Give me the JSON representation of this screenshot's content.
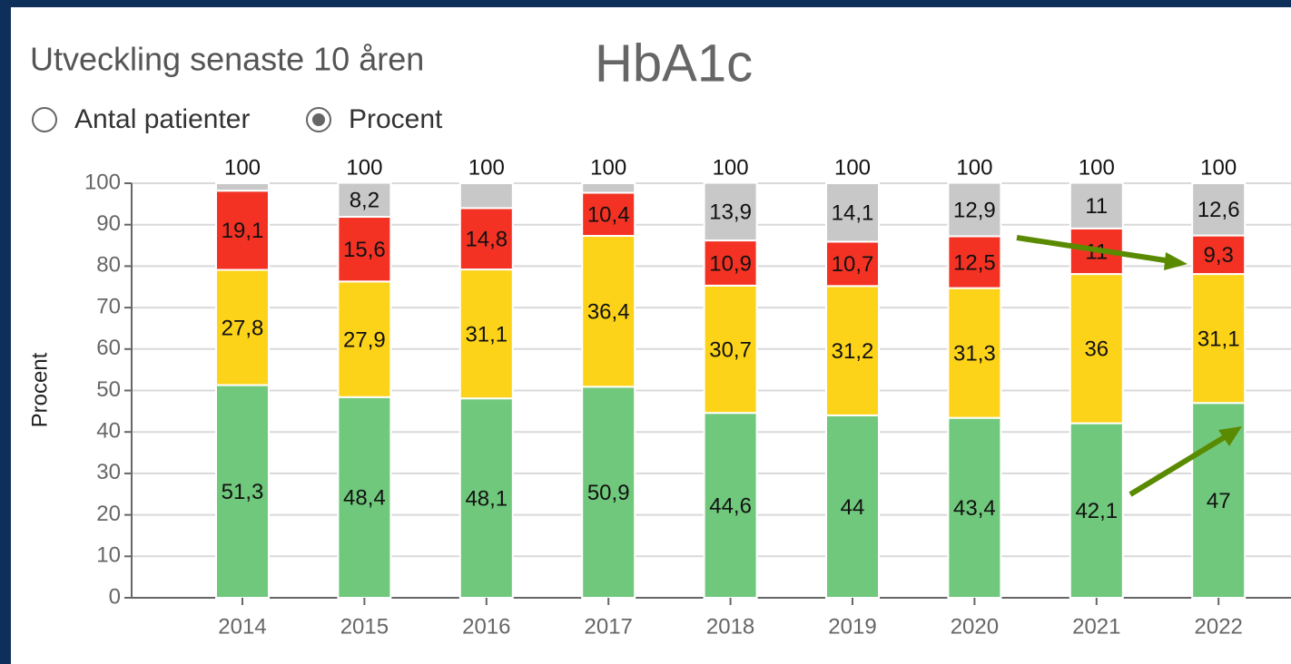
{
  "panel": {
    "heading": "Utveckling senaste 10 åren",
    "options": [
      {
        "label": "Antal patienter",
        "selected": false
      },
      {
        "label": "Procent",
        "selected": true
      }
    ]
  },
  "chart_data": {
    "type": "stacked_bar",
    "title": "HbA1c",
    "ylabel": "Procent",
    "categories": [
      "2014",
      "2015",
      "2016",
      "2017",
      "2018",
      "2019",
      "2020",
      "2021",
      "2022"
    ],
    "totals": [
      100,
      100,
      100,
      100,
      100,
      100,
      100,
      100,
      100
    ],
    "series": [
      {
        "color": "#70c87c",
        "values": [
          51.3,
          48.4,
          48.1,
          50.9,
          44.6,
          44,
          43.4,
          42.1,
          47
        ],
        "value_labels": [
          "51,3",
          "48,4",
          "48,1",
          "50,9",
          "44,6",
          "44",
          "43,4",
          "42,1",
          "47"
        ]
      },
      {
        "color": "#fdd31a",
        "values": [
          27.8,
          27.9,
          31.1,
          36.4,
          30.7,
          31.2,
          31.3,
          36,
          31.1
        ],
        "value_labels": [
          "27,8",
          "27,9",
          "31,1",
          "36,4",
          "30,7",
          "31,2",
          "31,3",
          "36",
          "31,1"
        ]
      },
      {
        "color": "#f33224",
        "values": [
          19.1,
          15.6,
          14.8,
          10.4,
          10.9,
          10.7,
          12.5,
          11,
          9.3
        ],
        "value_labels": [
          "19,1",
          "15,6",
          "14,8",
          "10,4",
          "10,9",
          "10,7",
          "12,5",
          "11",
          "9,3"
        ]
      },
      {
        "color": "#c8c8c8",
        "values": [
          1.8,
          8.2,
          6,
          2.3,
          13.9,
          14.1,
          12.9,
          11,
          12.6
        ],
        "value_labels": [
          null,
          "8,2",
          null,
          null,
          "13,9",
          "14,1",
          "12,9",
          "11",
          "12,6"
        ]
      }
    ],
    "ylim": [
      0,
      100
    ],
    "yticks": [
      0,
      10,
      20,
      30,
      40,
      50,
      60,
      70,
      80,
      90,
      100
    ],
    "grid": true
  }
}
